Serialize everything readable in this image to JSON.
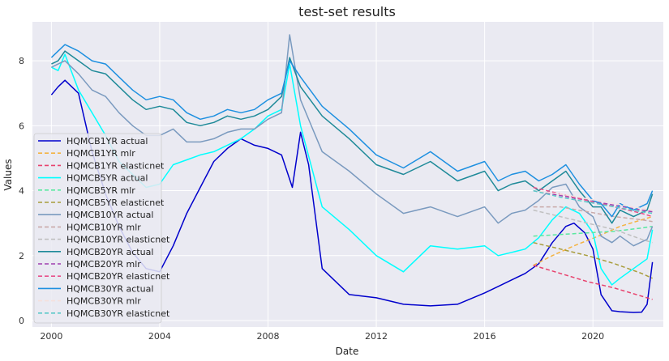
{
  "chart_data": {
    "type": "line",
    "title": "test-set results",
    "xlabel": "Date",
    "ylabel": "Values",
    "xlim": [
      1999.3,
      2022.6
    ],
    "ylim": [
      -0.2,
      9.2
    ],
    "x_ticks": [
      2000,
      2004,
      2008,
      2012,
      2016,
      2020
    ],
    "x_tick_labels": [
      "2000",
      "2004",
      "2008",
      "2012",
      "2016",
      "2020"
    ],
    "y_ticks": [
      0,
      2,
      4,
      6,
      8
    ],
    "y_tick_labels": [
      "0",
      "2",
      "4",
      "6",
      "8"
    ],
    "grid": true,
    "background": "#eaeaf2",
    "legend_position": "left",
    "series": [
      {
        "name": "HQMCB1YR actual",
        "color": "#0000cc",
        "style": "solid",
        "x": [
          2000.0,
          2000.25,
          2000.5,
          2001.0,
          2001.5,
          2002.0,
          2002.5,
          2003.0,
          2003.5,
          2004.0,
          2004.5,
          2005.0,
          2005.5,
          2006.0,
          2006.5,
          2007.0,
          2007.5,
          2008.0,
          2008.5,
          2008.9,
          2009.2,
          2009.5,
          2010.0,
          2011.0,
          2012.0,
          2013.0,
          2014.0,
          2015.0,
          2016.0,
          2016.5,
          2017.0,
          2017.5,
          2018.0,
          2018.5,
          2019.0,
          2019.3,
          2019.7,
          2020.0,
          2020.3,
          2020.7,
          2021.0,
          2021.5,
          2021.8,
          2022.0,
          2022.2
        ],
        "y": [
          6.95,
          7.2,
          7.4,
          7.0,
          5.2,
          3.9,
          2.9,
          2.1,
          1.6,
          1.5,
          2.3,
          3.3,
          4.1,
          4.9,
          5.3,
          5.6,
          5.4,
          5.3,
          5.1,
          4.1,
          5.8,
          4.8,
          1.6,
          0.8,
          0.7,
          0.5,
          0.45,
          0.5,
          0.85,
          1.05,
          1.25,
          1.45,
          1.75,
          2.4,
          2.9,
          3.0,
          2.7,
          2.2,
          0.8,
          0.3,
          0.27,
          0.25,
          0.26,
          0.5,
          1.8
        ]
      },
      {
        "name": "HQMCB1YR mlr",
        "color": "#f4b342",
        "style": "dashed",
        "x": [
          2017.8,
          2018.5,
          2019.3,
          2020.2,
          2021.0,
          2021.8,
          2022.2
        ],
        "y": [
          1.7,
          2.0,
          2.3,
          2.6,
          2.9,
          3.1,
          3.2
        ]
      },
      {
        "name": "HQMCB1YR elasticnet",
        "color": "#e8436e",
        "style": "dashed",
        "x": [
          2017.8,
          2018.8,
          2019.8,
          2020.8,
          2021.8,
          2022.2
        ],
        "y": [
          1.7,
          1.45,
          1.2,
          1.0,
          0.75,
          0.65
        ]
      },
      {
        "name": "HQMCB5YR actual",
        "color": "#00ffff",
        "style": "solid",
        "x": [
          2000.0,
          2000.25,
          2000.5,
          2001.0,
          2001.5,
          2002.0,
          2002.5,
          2003.0,
          2003.5,
          2004.0,
          2004.5,
          2005.0,
          2005.5,
          2006.0,
          2006.5,
          2007.0,
          2007.5,
          2008.0,
          2008.5,
          2008.8,
          2009.2,
          2010.0,
          2011.0,
          2012.0,
          2013.0,
          2014.0,
          2015.0,
          2016.0,
          2016.5,
          2017.0,
          2017.5,
          2018.0,
          2018.5,
          2019.0,
          2019.5,
          2020.0,
          2020.3,
          2020.7,
          2021.0,
          2021.5,
          2022.0,
          2022.2
        ],
        "y": [
          7.8,
          7.7,
          8.2,
          7.1,
          6.4,
          5.7,
          4.9,
          4.5,
          4.1,
          4.2,
          4.8,
          4.95,
          5.1,
          5.2,
          5.4,
          5.6,
          5.9,
          6.3,
          6.5,
          7.9,
          6.0,
          3.5,
          2.8,
          2.0,
          1.5,
          2.3,
          2.2,
          2.3,
          2.0,
          2.1,
          2.2,
          2.55,
          3.1,
          3.5,
          3.3,
          2.7,
          1.6,
          1.1,
          1.3,
          1.6,
          1.9,
          2.8
        ]
      },
      {
        "name": "HQMCB5YR mlr",
        "color": "#5ae8a0",
        "style": "dashed",
        "x": [
          2017.8,
          2018.8,
          2019.8,
          2020.8,
          2021.8,
          2022.2
        ],
        "y": [
          2.6,
          2.65,
          2.7,
          2.75,
          2.85,
          2.9
        ]
      },
      {
        "name": "HQMCB5YR elasticnet",
        "color": "#a89c3a",
        "style": "dashed",
        "x": [
          2017.8,
          2018.8,
          2019.8,
          2020.8,
          2021.8,
          2022.2
        ],
        "y": [
          2.4,
          2.2,
          2.0,
          1.75,
          1.45,
          1.3
        ]
      },
      {
        "name": "HQMCB10YR actual",
        "color": "#7a9abf",
        "style": "solid",
        "x": [
          2000.0,
          2000.25,
          2000.5,
          2001.0,
          2001.5,
          2002.0,
          2002.5,
          2003.0,
          2003.5,
          2004.0,
          2004.5,
          2005.0,
          2005.5,
          2006.0,
          2006.5,
          2007.0,
          2007.5,
          2008.0,
          2008.5,
          2008.8,
          2009.2,
          2010.0,
          2011.0,
          2012.0,
          2013.0,
          2014.0,
          2015.0,
          2016.0,
          2016.5,
          2017.0,
          2017.5,
          2018.0,
          2018.5,
          2019.0,
          2019.5,
          2020.0,
          2020.3,
          2020.7,
          2021.0,
          2021.5,
          2022.0,
          2022.2
        ],
        "y": [
          7.8,
          7.9,
          8.0,
          7.6,
          7.1,
          6.9,
          6.4,
          6.0,
          5.7,
          5.7,
          5.9,
          5.5,
          5.5,
          5.6,
          5.8,
          5.9,
          5.9,
          6.2,
          6.4,
          8.8,
          6.8,
          5.2,
          4.6,
          3.9,
          3.3,
          3.5,
          3.2,
          3.5,
          3.0,
          3.3,
          3.4,
          3.7,
          4.1,
          4.2,
          3.5,
          3.2,
          2.6,
          2.4,
          2.6,
          2.3,
          2.5,
          2.9
        ]
      },
      {
        "name": "HQMCB10YR mlr",
        "color": "#c9a9a9",
        "style": "dashed",
        "x": [
          2017.8,
          2018.8,
          2019.8,
          2020.8,
          2021.8,
          2022.2
        ],
        "y": [
          3.5,
          3.5,
          3.35,
          3.2,
          3.1,
          3.05
        ]
      },
      {
        "name": "HQMCB10YR elasticnet",
        "color": "#c0c0c0",
        "style": "dashed",
        "x": [
          2017.8,
          2018.8,
          2019.8,
          2020.8,
          2021.8,
          2022.2
        ],
        "y": [
          3.4,
          3.2,
          3.0,
          2.8,
          2.5,
          2.4
        ]
      },
      {
        "name": "HQMCB20YR actual",
        "color": "#1f8a99",
        "style": "solid",
        "x": [
          2000.0,
          2000.25,
          2000.5,
          2001.0,
          2001.5,
          2002.0,
          2002.5,
          2003.0,
          2003.5,
          2004.0,
          2004.5,
          2005.0,
          2005.5,
          2006.0,
          2006.5,
          2007.0,
          2007.5,
          2008.0,
          2008.5,
          2008.8,
          2009.2,
          2010.0,
          2011.0,
          2012.0,
          2013.0,
          2014.0,
          2015.0,
          2016.0,
          2016.5,
          2017.0,
          2017.5,
          2018.0,
          2018.5,
          2019.0,
          2019.5,
          2020.0,
          2020.3,
          2020.7,
          2021.0,
          2021.5,
          2022.0,
          2022.2
        ],
        "y": [
          7.9,
          8.0,
          8.3,
          8.0,
          7.7,
          7.6,
          7.2,
          6.8,
          6.5,
          6.6,
          6.5,
          6.1,
          6.0,
          6.1,
          6.3,
          6.2,
          6.3,
          6.5,
          6.9,
          8.1,
          7.2,
          6.3,
          5.6,
          4.8,
          4.5,
          4.9,
          4.3,
          4.6,
          4.0,
          4.2,
          4.3,
          4.0,
          4.3,
          4.6,
          4.0,
          3.5,
          3.5,
          3.0,
          3.4,
          3.2,
          3.4,
          3.9
        ]
      },
      {
        "name": "HQMCB20YR mlr",
        "color": "#a040b0",
        "style": "dashed",
        "x": [
          2017.8,
          2018.8,
          2019.8,
          2020.8,
          2021.8,
          2022.2
        ],
        "y": [
          4.0,
          3.85,
          3.7,
          3.55,
          3.4,
          3.35
        ]
      },
      {
        "name": "HQMCB20YR elasticnet",
        "color": "#e8508a",
        "style": "dashed",
        "x": [
          2017.8,
          2018.8,
          2019.8,
          2020.8,
          2021.8,
          2022.2
        ],
        "y": [
          4.1,
          3.9,
          3.7,
          3.5,
          3.3,
          3.2
        ]
      },
      {
        "name": "HQMCB30YR actual",
        "color": "#1e90e0",
        "style": "solid",
        "x": [
          2000.0,
          2000.25,
          2000.5,
          2001.0,
          2001.5,
          2002.0,
          2002.5,
          2003.0,
          2003.5,
          2004.0,
          2004.5,
          2005.0,
          2005.5,
          2006.0,
          2006.5,
          2007.0,
          2007.5,
          2008.0,
          2008.5,
          2008.8,
          2009.2,
          2010.0,
          2011.0,
          2012.0,
          2013.0,
          2014.0,
          2015.0,
          2016.0,
          2016.5,
          2017.0,
          2017.5,
          2018.0,
          2018.5,
          2019.0,
          2019.5,
          2020.0,
          2020.3,
          2020.7,
          2021.0,
          2021.5,
          2022.0,
          2022.2
        ],
        "y": [
          8.1,
          8.3,
          8.5,
          8.3,
          8.0,
          7.9,
          7.5,
          7.1,
          6.8,
          6.9,
          6.8,
          6.4,
          6.2,
          6.3,
          6.5,
          6.4,
          6.5,
          6.8,
          7.0,
          8.0,
          7.5,
          6.6,
          5.9,
          5.1,
          4.7,
          5.2,
          4.6,
          4.9,
          4.3,
          4.5,
          4.6,
          4.3,
          4.5,
          4.8,
          4.2,
          3.7,
          3.6,
          3.2,
          3.6,
          3.4,
          3.6,
          4.0
        ]
      },
      {
        "name": "HQMCB30YR mlr",
        "color": "#f5e0dc",
        "style": "dashed",
        "x": [
          2017.8,
          2018.8,
          2019.8,
          2020.8,
          2021.8,
          2022.2
        ],
        "y": [
          4.0,
          3.9,
          3.75,
          3.6,
          3.45,
          3.4
        ]
      },
      {
        "name": "HQMCB30YR elasticnet",
        "color": "#5ac8c8",
        "style": "dashed",
        "x": [
          2017.8,
          2018.8,
          2019.8,
          2020.8,
          2021.8,
          2022.2
        ],
        "y": [
          4.0,
          3.8,
          3.65,
          3.5,
          3.35,
          3.3
        ]
      }
    ]
  }
}
